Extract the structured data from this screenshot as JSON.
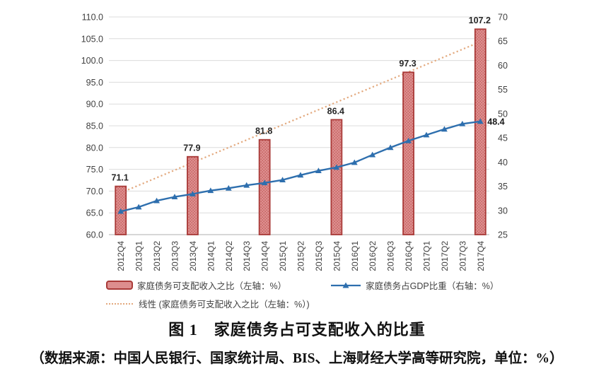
{
  "figure": {
    "title": "图 1　家庭债务占可支配收入的比重",
    "source": "（数据来源：中国人民银行、国家统计局、BIS、上海财经大学高等研究院，单位：%）"
  },
  "legend": {
    "bar_label": "家庭债务可支配收入之比（左轴：%）",
    "line_label": "家庭债务占GDP比重（右轴：%）",
    "trend_label": "线性 (家庭债务可支配收入之比（左轴：%）)"
  },
  "colors": {
    "bar_fill": "#dd8e8e",
    "bar_dot": "#c05a58",
    "bar_border": "#a93a38",
    "line": "#2e6fae",
    "trend": "#e3a97e",
    "grid": "#dcdcdc",
    "axis_line": "#bfbfbf",
    "tick_text": "#404040",
    "value_text": "#262626"
  },
  "chart_data": {
    "type": "combo",
    "title": "家庭债务占可支配收入的比重",
    "categories": [
      "2012Q4",
      "2013Q1",
      "2013Q2",
      "2013Q3",
      "2013Q4",
      "2014Q1",
      "2014Q2",
      "2014Q3",
      "2014Q4",
      "2015Q1",
      "2015Q2",
      "2015Q3",
      "2015Q4",
      "2016Q1",
      "2016Q2",
      "2016Q3",
      "2016Q4",
      "2017Q1",
      "2017Q2",
      "2017Q3",
      "2017Q4"
    ],
    "series": [
      {
        "name": "家庭债务可支配收入之比（左轴：%）",
        "type": "bar",
        "axis": "left",
        "values": [
          71.1,
          null,
          null,
          null,
          77.9,
          null,
          null,
          null,
          81.8,
          null,
          null,
          null,
          86.4,
          null,
          null,
          null,
          97.3,
          null,
          null,
          null,
          107.2
        ]
      },
      {
        "name": "家庭债务占GDP比重（右轴：%）",
        "type": "line",
        "axis": "right",
        "values": [
          29.8,
          30.7,
          32.0,
          32.8,
          33.4,
          34.1,
          34.6,
          35.2,
          35.7,
          36.3,
          37.3,
          38.2,
          38.9,
          39.9,
          41.5,
          43.0,
          44.4,
          45.6,
          46.8,
          47.9,
          48.4
        ]
      },
      {
        "name": "线性 (家庭债务可支配收入之比（左轴：%）)",
        "type": "trendline",
        "axis": "left",
        "endpoints": [
          69.6,
          104.3
        ]
      }
    ],
    "line_end_label": "48.4",
    "left_axis": {
      "min": 60,
      "max": 110,
      "step": 5,
      "decimals": 1
    },
    "right_axis": {
      "min": 25,
      "max": 70,
      "step": 5,
      "decimals": 0
    },
    "grid": true,
    "legend_position": "bottom"
  }
}
